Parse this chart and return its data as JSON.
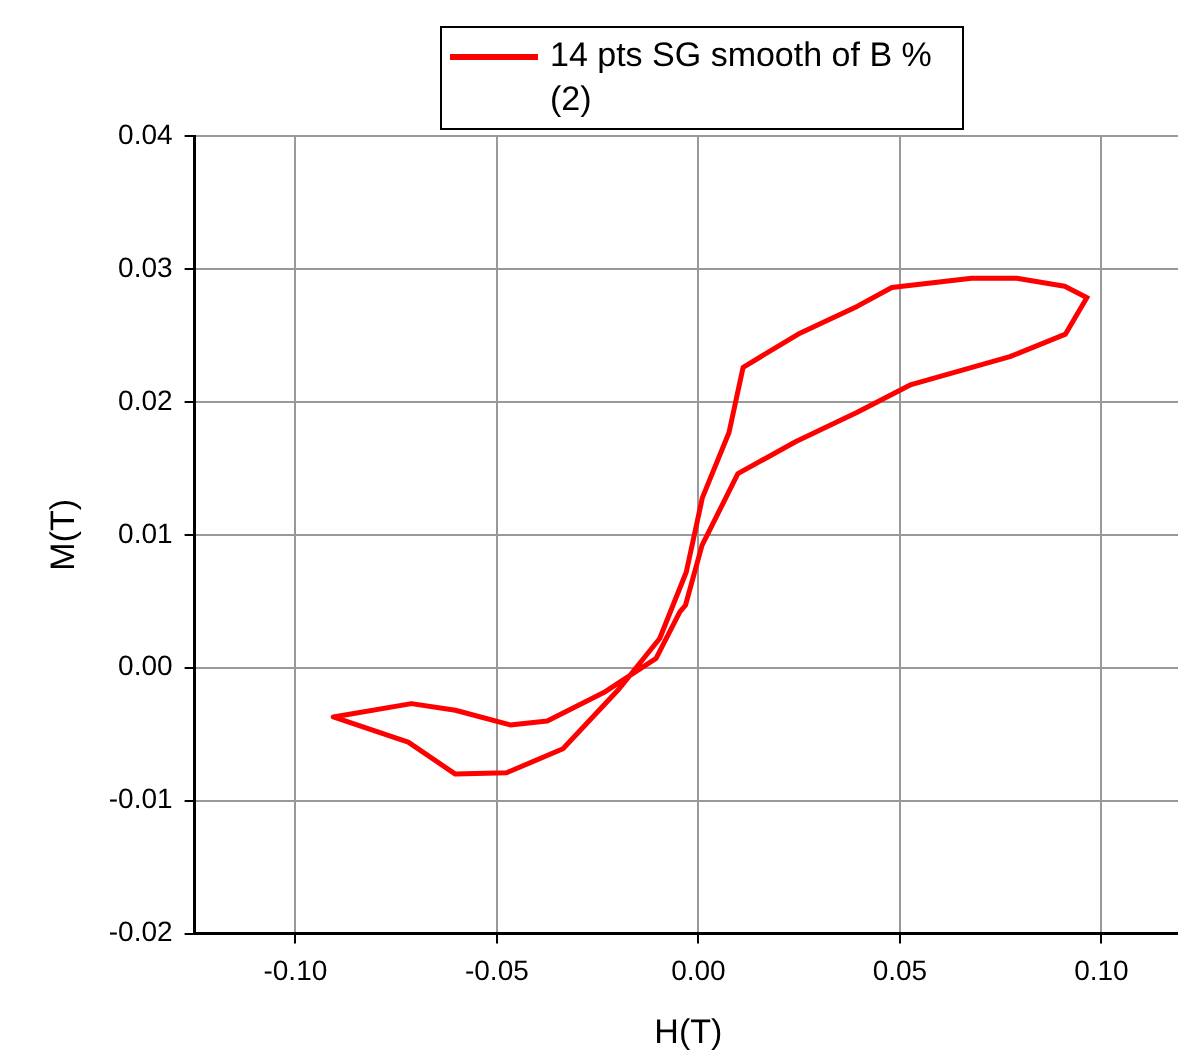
{
  "chart_data": {
    "type": "line",
    "xlabel": "H(T)",
    "ylabel": "M(T)",
    "xlim": [
      -0.125,
      0.12
    ],
    "ylim": [
      -0.02,
      0.04
    ],
    "xticks": [
      {
        "value": -0.1,
        "label": "-0.10"
      },
      {
        "value": -0.05,
        "label": "-0.05"
      },
      {
        "value": 0,
        "label": "0.00"
      },
      {
        "value": 0.05,
        "label": "0.05"
      },
      {
        "value": 0.1,
        "label": "0.10"
      }
    ],
    "yticks": [
      {
        "value": -0.02,
        "label": "-0.02"
      },
      {
        "value": -0.01,
        "label": "-0.01"
      },
      {
        "value": 0,
        "label": "0.00"
      },
      {
        "value": 0.01,
        "label": "0.01"
      },
      {
        "value": 0.02,
        "label": "0.02"
      },
      {
        "value": 0.03,
        "label": "0.03"
      },
      {
        "value": 0.04,
        "label": "0.04"
      }
    ],
    "grid": true,
    "legend": "top",
    "marker": "none",
    "line_style": "solid",
    "series": [
      {
        "name": "14 pts SG smooth of B % (2)",
        "color": "#ff0000",
        "x": [
          0.0967,
          0.0909,
          0.079,
          0.0678,
          0.048,
          0.0395,
          0.0248,
          0.0111,
          0.0076,
          0.001,
          -0.003,
          -0.0096,
          -0.0197,
          -0.0336,
          -0.0476,
          -0.0603,
          -0.072,
          -0.0906,
          -0.0712,
          -0.0603,
          -0.0467,
          -0.0375,
          -0.0231,
          -0.0105,
          -0.0046,
          -0.0032,
          0.0009,
          0.0098,
          0.0241,
          0.0393,
          0.0528,
          0.0773,
          0.0911,
          0.0967
        ],
        "values": [
          0.0278,
          0.0287,
          0.0293,
          0.0293,
          0.0286,
          0.0272,
          0.0251,
          0.0226,
          0.0177,
          0.0128,
          0.0072,
          0.0022,
          -0.0016,
          -0.0061,
          -0.0079,
          -0.008,
          -0.0056,
          -0.0037,
          -0.0027,
          -0.0032,
          -0.0043,
          -0.004,
          -0.0018,
          0.0007,
          0.0042,
          0.0047,
          0.0092,
          0.0146,
          0.017,
          0.0192,
          0.0213,
          0.0234,
          0.0251,
          0.028
        ]
      }
    ]
  }
}
